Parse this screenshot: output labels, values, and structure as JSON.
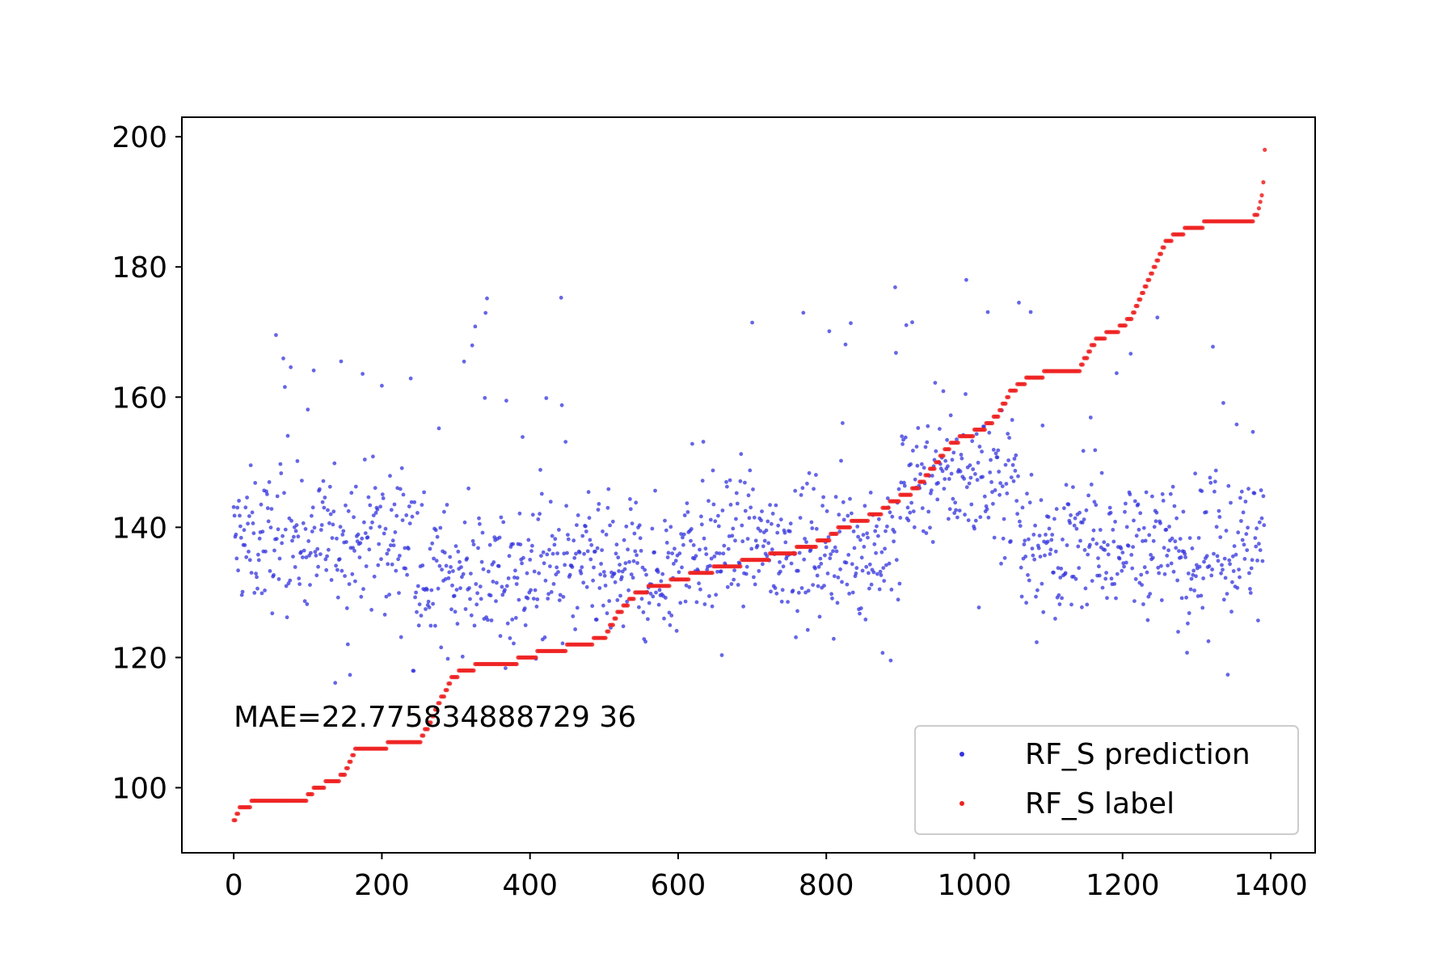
{
  "chart_data": {
    "type": "scatter",
    "title": "",
    "xlabel": "",
    "ylabel": "",
    "xlim": [
      -70,
      1460
    ],
    "ylim": [
      90,
      203
    ],
    "x_ticks": [
      0,
      200,
      400,
      600,
      800,
      1000,
      1200,
      1400
    ],
    "y_ticks": [
      100,
      120,
      140,
      160,
      180,
      200
    ],
    "grid": false,
    "annotation": {
      "text": "MAE=22.775834888729 36",
      "x": 0,
      "y": 111
    },
    "legend": {
      "position": "lower-right",
      "entries": [
        {
          "label": "RF_S prediction",
          "color": "#3333dd"
        },
        {
          "label": "RF_S label",
          "color": "#ee2222"
        }
      ]
    },
    "series": [
      {
        "name": "RF_S prediction",
        "color": "#3333dd",
        "count": 1392,
        "y_range_by_index": [
          {
            "x_from": 0,
            "x_to": 250,
            "y_min": 116,
            "y_max": 170,
            "center": 138
          },
          {
            "x_from": 250,
            "x_to": 600,
            "y_min": 117,
            "y_max": 176,
            "center": 133
          },
          {
            "x_from": 600,
            "x_to": 900,
            "y_min": 115,
            "y_max": 177,
            "center": 137
          },
          {
            "x_from": 900,
            "x_to": 1060,
            "y_min": 119,
            "y_max": 179,
            "center": 148
          },
          {
            "x_from": 1060,
            "x_to": 1392,
            "y_min": 116,
            "y_max": 179,
            "center": 137
          }
        ]
      },
      {
        "name": "RF_S label",
        "color": "#ee2222",
        "x": [
          0,
          10,
          35,
          95,
          110,
          135,
          150,
          165,
          200,
          215,
          250,
          265,
          295,
          310,
          340,
          375,
          390,
          430,
          470,
          500,
          520,
          545,
          575,
          605,
          625,
          670,
          700,
          745,
          775,
          800,
          820,
          845,
          870,
          890,
          910,
          930,
          950,
          970,
          990,
          1010,
          1030,
          1050,
          1075,
          1110,
          1140,
          1165,
          1190,
          1210,
          1260,
          1290,
          1330,
          1375,
          1385,
          1390,
          1392
        ],
        "y": [
          95,
          97,
          98,
          98,
          100,
          101,
          102,
          106,
          106,
          107,
          107,
          110,
          117,
          118,
          119,
          119,
          120,
          121,
          122,
          123,
          127,
          130,
          131,
          132,
          133,
          134,
          135,
          136,
          137,
          138,
          140,
          141,
          142,
          144,
          145,
          147,
          150,
          153,
          154,
          155,
          157,
          161,
          163,
          164,
          164,
          169,
          170,
          172,
          184,
          186,
          187,
          187,
          189,
          193,
          198
        ]
      }
    ]
  }
}
